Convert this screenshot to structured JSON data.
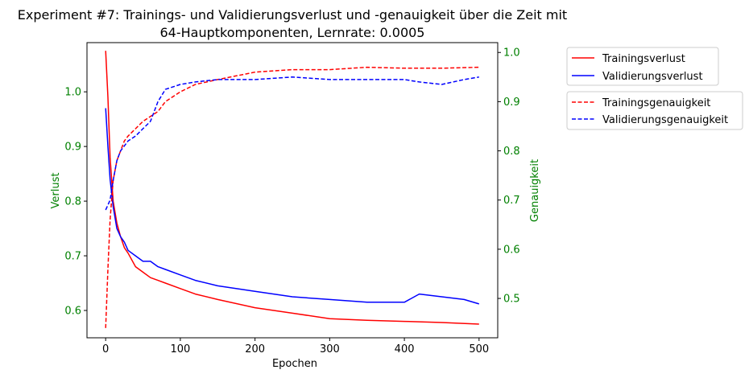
{
  "chart_data": {
    "type": "line",
    "title_line1": "Experiment #7: Trainings- und Validierungsverlust und -genauigkeit über die Zeit mit",
    "title_line2": "64-Hauptkomponenten, Lernrate: 0.0005",
    "xlabel": "Epochen",
    "ylabel_left": "Verlust",
    "ylabel_right": "Genauigkeit",
    "xlim": [
      -25,
      525
    ],
    "ylim_left": [
      0.55,
      1.09
    ],
    "ylim_right": [
      0.42,
      1.02
    ],
    "xticks": [
      "0",
      "100",
      "200",
      "300",
      "400",
      "500"
    ],
    "yticks_left": [
      "0.6",
      "0.7",
      "0.8",
      "0.9",
      "1.0"
    ],
    "yticks_right": [
      "0.5",
      "0.6",
      "0.7",
      "0.8",
      "0.9",
      "1.0"
    ],
    "tick_label_color_y": "#008000",
    "axis_label_color_y": "#008000",
    "legend_loss": [
      "Trainingsverlust",
      "Validierungsverlust"
    ],
    "legend_acc": [
      "Trainingsgenauigkeit",
      "Validierungsgenauigkeit"
    ],
    "series": [
      {
        "name": "Trainingsverlust",
        "axis": "left",
        "color": "#ff0000",
        "style": "solid",
        "x": [
          0,
          3,
          6,
          10,
          15,
          20,
          25,
          30,
          40,
          50,
          60,
          70,
          80,
          100,
          120,
          150,
          200,
          250,
          300,
          350,
          400,
          450,
          500
        ],
        "y": [
          1.075,
          0.99,
          0.88,
          0.8,
          0.76,
          0.735,
          0.715,
          0.705,
          0.68,
          0.67,
          0.66,
          0.655,
          0.65,
          0.64,
          0.63,
          0.62,
          0.605,
          0.595,
          0.585,
          0.582,
          0.58,
          0.578,
          0.575
        ]
      },
      {
        "name": "Validierungsverlust",
        "axis": "left",
        "color": "#0000ff",
        "style": "solid",
        "x": [
          0,
          3,
          6,
          10,
          15,
          20,
          25,
          30,
          40,
          50,
          60,
          70,
          80,
          100,
          120,
          150,
          200,
          250,
          300,
          350,
          400,
          420,
          450,
          480,
          500
        ],
        "y": [
          0.97,
          0.9,
          0.84,
          0.79,
          0.75,
          0.735,
          0.725,
          0.71,
          0.7,
          0.69,
          0.69,
          0.68,
          0.675,
          0.665,
          0.655,
          0.645,
          0.635,
          0.625,
          0.62,
          0.615,
          0.615,
          0.63,
          0.625,
          0.62,
          0.612
        ]
      },
      {
        "name": "Trainingsgenauigkeit",
        "axis": "right",
        "color": "#ff0000",
        "style": "dashed",
        "x": [
          0,
          3,
          6,
          10,
          15,
          20,
          25,
          30,
          40,
          50,
          60,
          70,
          80,
          100,
          120,
          150,
          200,
          250,
          300,
          350,
          400,
          450,
          500
        ],
        "y": [
          0.44,
          0.56,
          0.66,
          0.74,
          0.78,
          0.8,
          0.82,
          0.83,
          0.845,
          0.86,
          0.87,
          0.88,
          0.9,
          0.92,
          0.935,
          0.945,
          0.96,
          0.965,
          0.965,
          0.97,
          0.968,
          0.968,
          0.97
        ]
      },
      {
        "name": "Validierungsgenauigkeit",
        "axis": "right",
        "color": "#0000ff",
        "style": "dashed",
        "x": [
          0,
          3,
          6,
          10,
          15,
          20,
          25,
          30,
          40,
          50,
          60,
          70,
          80,
          100,
          120,
          150,
          200,
          250,
          300,
          350,
          400,
          420,
          450,
          480,
          500
        ],
        "y": [
          0.68,
          0.69,
          0.7,
          0.74,
          0.78,
          0.8,
          0.81,
          0.82,
          0.83,
          0.845,
          0.86,
          0.9,
          0.925,
          0.935,
          0.94,
          0.945,
          0.945,
          0.95,
          0.945,
          0.945,
          0.945,
          0.94,
          0.935,
          0.945,
          0.95
        ]
      }
    ]
  }
}
